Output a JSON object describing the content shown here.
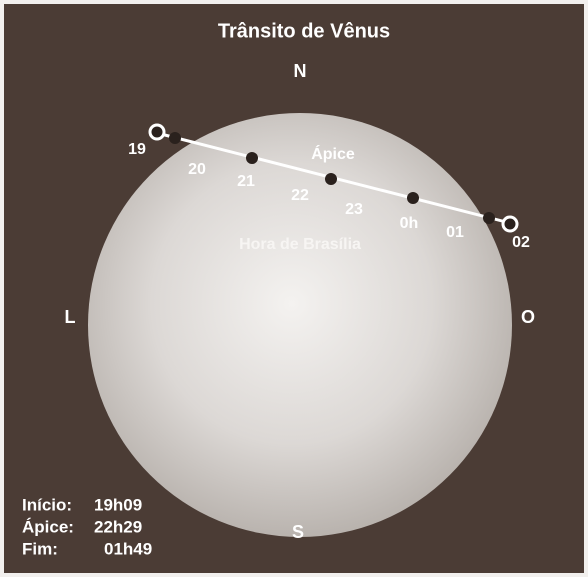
{
  "title": "Trânsito de Vênus",
  "compass": {
    "north": "N",
    "south": "S",
    "east": "L",
    "west": "O"
  },
  "path_labels": [
    "19",
    "20",
    "21",
    "22",
    "23",
    "0h",
    "01",
    "02"
  ],
  "apex_label": "Ápice",
  "time_zone": "Hora de Brasília",
  "info": [
    {
      "label": "Início:",
      "time": "19h09"
    },
    {
      "label": "Ápice:",
      "time": "22h29"
    },
    {
      "label": "Fim:",
      "time": "01h49"
    }
  ]
}
